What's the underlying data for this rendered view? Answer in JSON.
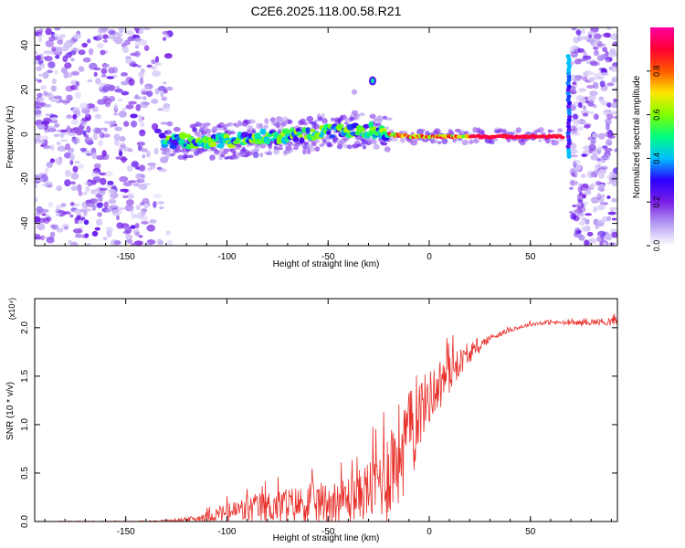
{
  "title": "C2E6.2025.118.00.58.R21",
  "chart_data": [
    {
      "type": "heatmap",
      "xlabel": "Height of straight line (km)",
      "ylabel": "Frequency (Hz)",
      "xlim": [
        -195,
        93
      ],
      "ylim": [
        -50,
        48
      ],
      "x_ticks": [
        -150,
        -100,
        -50,
        0,
        50
      ],
      "y_ticks": [
        -40,
        -20,
        0,
        20,
        40
      ],
      "colorbar": {
        "label": "Normalized spectral amplitude",
        "range": [
          0,
          1
        ],
        "ticks": [
          "0.0",
          "0.2",
          "0.4",
          "0.6",
          "0.8"
        ],
        "colors": [
          "#ffffff",
          "#b59cf2",
          "#7a1fe6",
          "#2b00ff",
          "#00bfff",
          "#00ff80",
          "#80ff00",
          "#ffe600",
          "#ff5a00",
          "#ff0033",
          "#ff00a0"
        ]
      },
      "noise_regions": [
        [
          -195,
          -128
        ],
        [
          70,
          93
        ]
      ],
      "ridge": [
        [
          -130,
          -3
        ],
        [
          -110,
          -3
        ],
        [
          -100,
          -3
        ],
        [
          -90,
          -2
        ],
        [
          -80,
          -1
        ],
        [
          -70,
          -1
        ],
        [
          -60,
          0
        ],
        [
          -50,
          1
        ],
        [
          -40,
          2
        ],
        [
          -30,
          2
        ],
        [
          -20,
          0
        ],
        [
          -10,
          -1
        ],
        [
          0,
          -1
        ],
        [
          20,
          -1
        ],
        [
          40,
          -1
        ],
        [
          66,
          -1
        ]
      ],
      "features": [
        {
          "x": -28,
          "y": 24,
          "desc": "isolated high-frequency blob"
        },
        {
          "x": 69,
          "y": 0,
          "desc": "vertical band from -10 to 35 Hz at about 69 km"
        }
      ]
    },
    {
      "type": "line",
      "xlabel": "Height of straight line (km)",
      "ylabel": "SNR (10 * v/v)",
      "y_multiplier": "(x10⁴)",
      "xlim": [
        -195,
        93
      ],
      "ylim": [
        0,
        2.3
      ],
      "x_ticks": [
        -150,
        -100,
        -50,
        0,
        50
      ],
      "y_ticks": [
        "0.0",
        "0.5",
        "1.0",
        "1.5",
        "2.0"
      ],
      "series": [
        {
          "color": "#e8302a",
          "envelope": {
            "x": [
              -195,
              -140,
              -125,
              -115,
              -105,
              -95,
              -85,
              -75,
              -65,
              -55,
              -45,
              -35,
              -28,
              -22,
              -18,
              -15,
              -12,
              -8,
              -5,
              0,
              5,
              10,
              15,
              20,
              25,
              30,
              35,
              40,
              50,
              60,
              70,
              80,
              93
            ],
            "base": [
              0.0,
              0.0,
              0.01,
              0.02,
              0.05,
              0.07,
              0.09,
              0.11,
              0.12,
              0.13,
              0.14,
              0.2,
              0.25,
              0.35,
              0.45,
              0.55,
              0.7,
              0.9,
              1.05,
              1.2,
              1.35,
              1.5,
              1.6,
              1.7,
              1.8,
              1.88,
              1.93,
              1.97,
              2.03,
              2.05,
              2.04,
              2.05,
              2.05
            ],
            "amp": [
              0.005,
              0.01,
              0.02,
              0.07,
              0.15,
              0.25,
              0.32,
              0.35,
              0.38,
              0.42,
              0.45,
              0.5,
              0.7,
              0.95,
              1.1,
              1.05,
              0.9,
              0.8,
              0.7,
              0.55,
              0.5,
              0.45,
              0.3,
              0.15,
              0.1,
              0.08,
              0.05,
              0.04,
              0.04,
              0.04,
              0.05,
              0.06,
              0.1
            ]
          }
        }
      ]
    }
  ]
}
